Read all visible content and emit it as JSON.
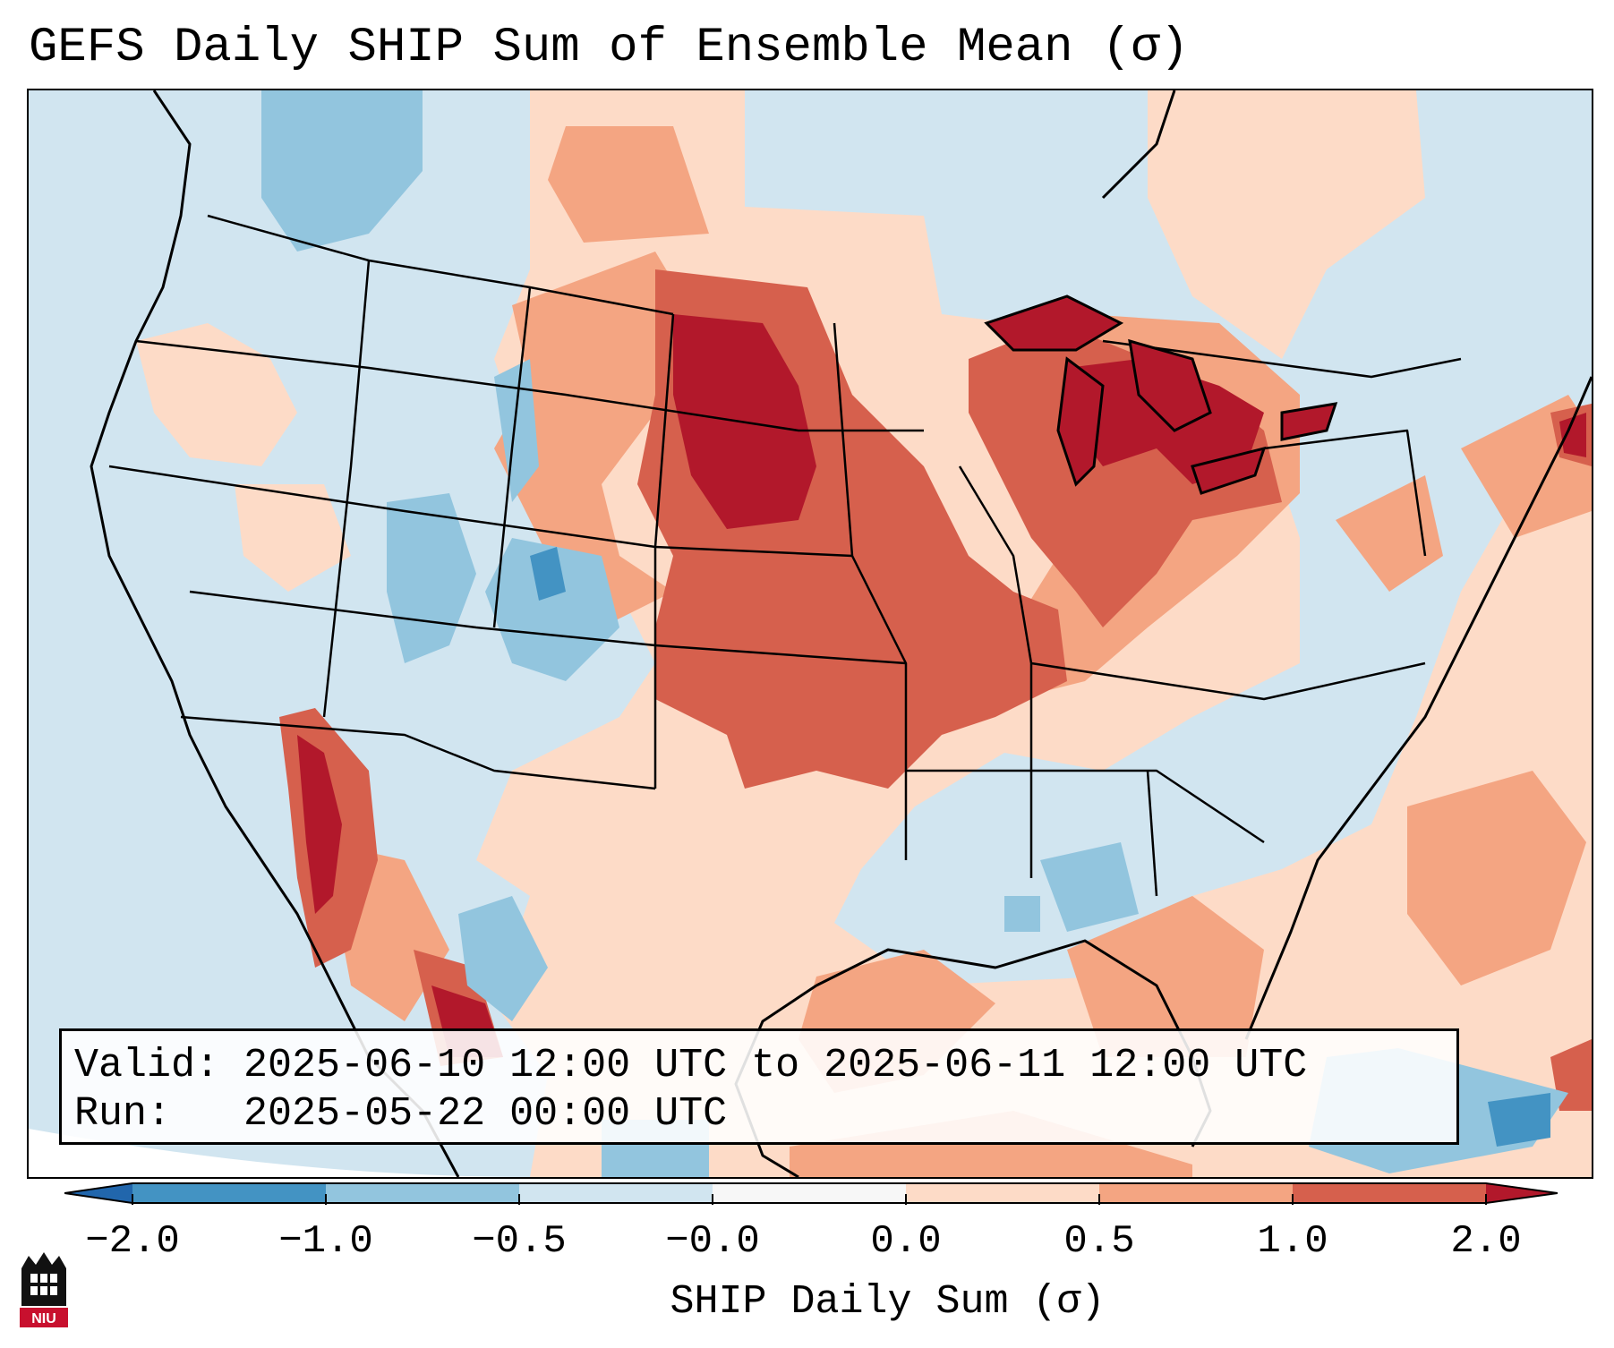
{
  "title": "GEFS Daily SHIP Sum of Ensemble Mean (σ)",
  "info": {
    "valid_label": "Valid:",
    "valid_value": "2025-06-10 12:00 UTC to 2025-06-11 12:00 UTC",
    "run_label": "Run:",
    "run_value": "2025-05-22 00:00 UTC"
  },
  "colorbar": {
    "label": "SHIP Daily Sum (σ)",
    "ticks": [
      "−2.0",
      "−1.0",
      "−0.5",
      "−0.0",
      "0.0",
      "0.5",
      "1.0",
      "2.0"
    ],
    "colors": {
      "under": "#2166ac",
      "bin_neg2_neg1": "#4393c3",
      "bin_neg1_neg05": "#92c5de",
      "bin_neg05_0": "#d1e5f0",
      "bin_zero": "#f7f7f7",
      "bin_0_05": "#fddbc7",
      "bin_05_1": "#f4a582",
      "bin_1_2": "#d6604d",
      "over": "#b2182b"
    }
  },
  "map": {
    "region": "Continental United States",
    "background_color": "#d1e5f0"
  },
  "logo": {
    "text": "NIU",
    "color": "#c8102e"
  }
}
